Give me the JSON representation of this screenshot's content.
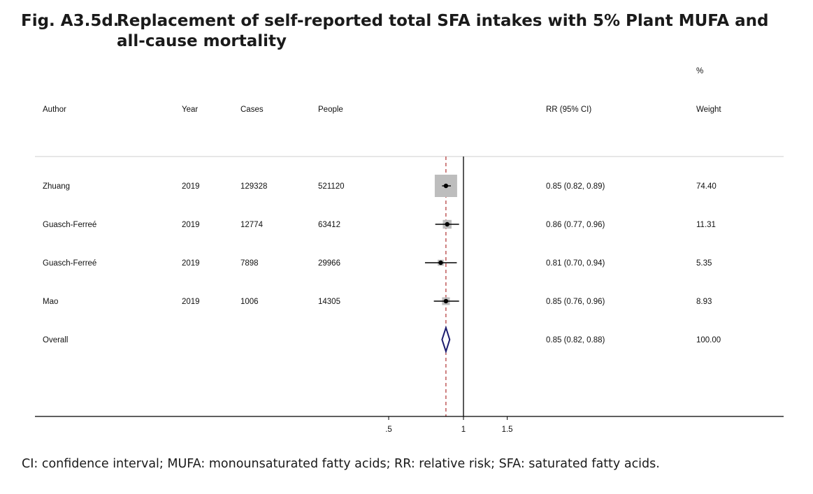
{
  "figure": {
    "number": "Fig. A3.5d.",
    "title": "Replacement of self-reported total SFA intakes with 5% Plant MUFA and all-cause mortality",
    "footnote": "CI: confidence interval; MUFA: monounsaturated fatty acids; RR: relative risk; SFA: saturated fatty acids."
  },
  "chart_data": {
    "type": "forest",
    "title": "Replacement of self-reported total SFA intakes with 5% Plant MUFA and all-cause mortality",
    "columns": {
      "author": "Author",
      "year": "Year",
      "cases": "Cases",
      "people": "People",
      "rr": "RR (95% CI)",
      "weight_top": "%",
      "weight": "Weight"
    },
    "studies": [
      {
        "author": "Zhuang",
        "year": "2019",
        "cases": "129328",
        "people": "521120",
        "rr": 0.85,
        "lo": 0.82,
        "hi": 0.89,
        "rr_text": "0.85 (0.82, 0.89)",
        "weight": 74.4,
        "weight_text": "74.40"
      },
      {
        "author": "Guasch-Ferreé",
        "year": "2019",
        "cases": "12774",
        "people": "63412",
        "rr": 0.86,
        "lo": 0.77,
        "hi": 0.96,
        "rr_text": "0.86 (0.77, 0.96)",
        "weight": 11.31,
        "weight_text": "11.31"
      },
      {
        "author": "Guasch-Ferreé",
        "year": "2019",
        "cases": "7898",
        "people": "29966",
        "rr": 0.81,
        "lo": 0.7,
        "hi": 0.94,
        "rr_text": "0.81 (0.70, 0.94)",
        "weight": 5.35,
        "weight_text": "5.35"
      },
      {
        "author": "Mao",
        "year": "2019",
        "cases": "1006",
        "people": "14305",
        "rr": 0.85,
        "lo": 0.76,
        "hi": 0.96,
        "rr_text": "0.85 (0.76, 0.96)",
        "weight": 8.93,
        "weight_text": "8.93"
      }
    ],
    "overall": {
      "author": "Overall",
      "rr": 0.85,
      "lo": 0.82,
      "hi": 0.88,
      "rr_text": "0.85 (0.82, 0.88)",
      "weight_text": "100.00"
    },
    "x_axis": {
      "scale": "log",
      "ticks": [
        0.5,
        1,
        1.5
      ],
      "tick_labels": [
        ".5",
        "1",
        "1.5"
      ],
      "null_line": 1
    },
    "colors": {
      "overall_diamond": "#1c1c6e",
      "overall_line": "#b03030",
      "weight_box": "#bdbdbd"
    }
  }
}
